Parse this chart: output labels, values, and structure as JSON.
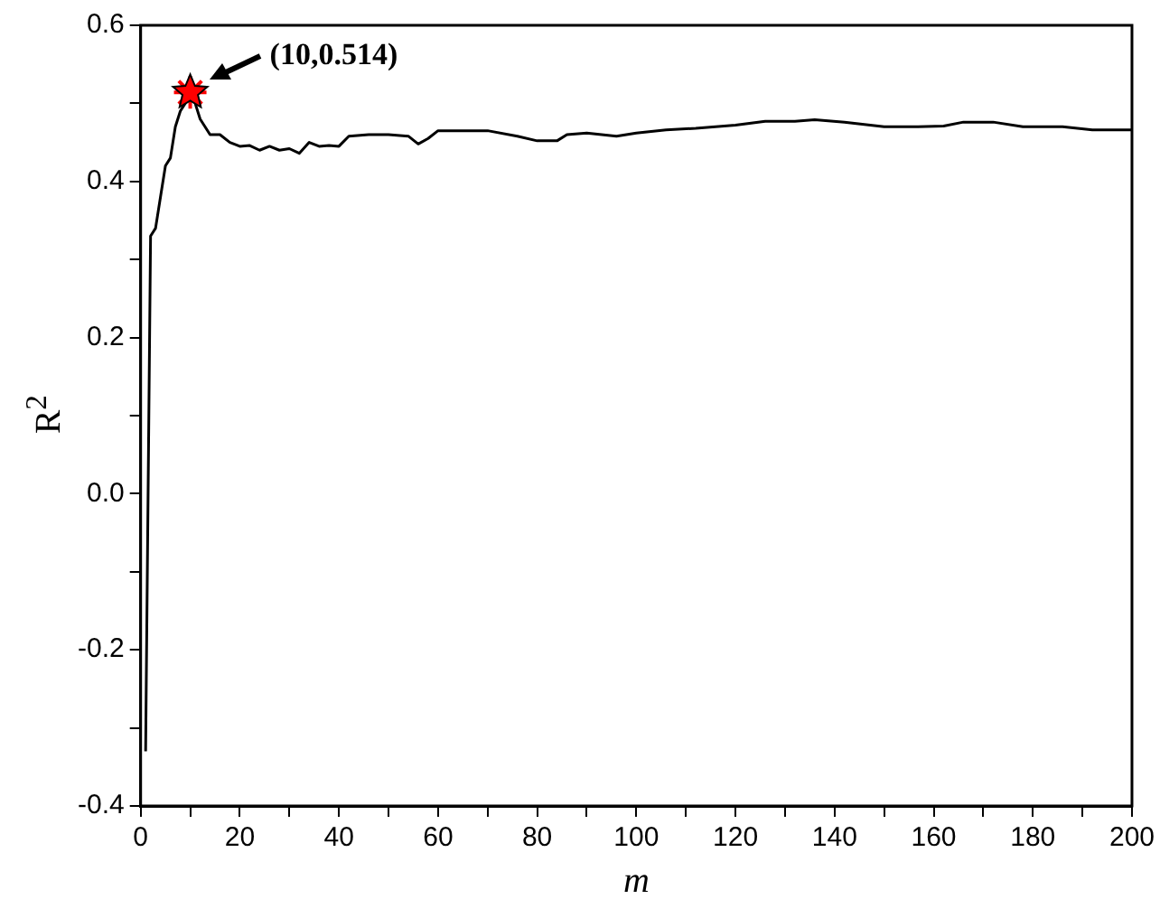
{
  "chart_data": {
    "type": "line",
    "xlabel": "m",
    "ylabel": "R$^{2}$",
    "xlim": [
      0,
      200
    ],
    "ylim": [
      -0.4,
      0.6
    ],
    "xticks": [
      0,
      {
        "value": 10,
        "label": null
      },
      20,
      {
        "value": 30,
        "label": null
      },
      40,
      {
        "value": 50,
        "label": null
      },
      60,
      {
        "value": 70,
        "label": null
      },
      80,
      {
        "value": 90,
        "label": null
      },
      100,
      {
        "value": 110,
        "label": null
      },
      120,
      {
        "value": 130,
        "label": null
      },
      140,
      {
        "value": 150,
        "label": null
      },
      160,
      {
        "value": 170,
        "label": null
      },
      180,
      {
        "value": 190,
        "label": null
      },
      200
    ],
    "yticks": [
      {
        "value": -0.4,
        "label": "-0.4"
      },
      {
        "value": -0.3,
        "label": null
      },
      {
        "value": -0.2,
        "label": "-0.2"
      },
      {
        "value": -0.1,
        "label": null
      },
      {
        "value": 0,
        "label": "0.0"
      },
      {
        "value": 0.1,
        "label": null
      },
      {
        "value": 0.2,
        "label": "0.2"
      },
      {
        "value": 0.3,
        "label": null
      },
      {
        "value": 0.4,
        "label": "0.4"
      },
      {
        "value": 0.5,
        "label": null
      },
      {
        "value": 0.6,
        "label": "0.6"
      }
    ],
    "grid": false,
    "legend": false,
    "marker": "none",
    "line_style": "solid",
    "series": [
      {
        "color": "#000000",
        "x": [
          1,
          2,
          3,
          4,
          5,
          6,
          7,
          8,
          9,
          10,
          11,
          12,
          14,
          16,
          18,
          20,
          22,
          24,
          26,
          28,
          30,
          32,
          34,
          36,
          38,
          40,
          42,
          46,
          50,
          54,
          56,
          58,
          60,
          64,
          70,
          76,
          80,
          84,
          86,
          90,
          96,
          100,
          106,
          112,
          120,
          126,
          132,
          136,
          142,
          150,
          156,
          162,
          166,
          172,
          178,
          186,
          192,
          200
        ],
        "values": [
          -0.33,
          0.33,
          0.34,
          0.38,
          0.42,
          0.43,
          0.47,
          0.49,
          0.5,
          0.514,
          0.5,
          0.48,
          0.46,
          0.46,
          0.45,
          0.445,
          0.446,
          0.44,
          0.445,
          0.44,
          0.442,
          0.436,
          0.45,
          0.445,
          0.446,
          0.445,
          0.458,
          0.46,
          0.46,
          0.458,
          0.448,
          0.455,
          0.465,
          0.465,
          0.465,
          0.458,
          0.452,
          0.452,
          0.46,
          0.462,
          0.458,
          0.462,
          0.466,
          0.468,
          0.472,
          0.477,
          0.477,
          0.479,
          0.476,
          0.47,
          0.47,
          0.471,
          0.476,
          0.476,
          0.47,
          0.47,
          0.466,
          0.466
        ]
      },
      {
        "type": "scatter",
        "color": "#ff0000",
        "marker": "star",
        "x": [
          10
        ],
        "values": [
          0.514
        ]
      }
    ],
    "annotations": [
      {
        "text": "(10,0.514)",
        "x": 10,
        "y": 0.514
      }
    ]
  }
}
